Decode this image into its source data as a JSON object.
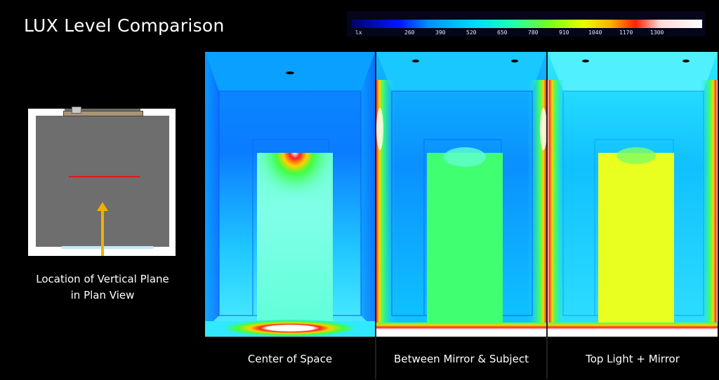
{
  "title": "LUX Level Comparison",
  "legend": {
    "unit": "lx",
    "ticks": [
      "260",
      "390",
      "520",
      "650",
      "780",
      "910",
      "1040",
      "1170",
      "1300"
    ]
  },
  "plan": {
    "caption_line1": "Location of Vertical Plane",
    "caption_line2": "in Plan View"
  },
  "panels": [
    {
      "label": "Center of Space"
    },
    {
      "label": "Between Mirror & Subject"
    },
    {
      "label": "Top Light + Mirror"
    }
  ],
  "colors": {
    "background": "#000000",
    "plan_line": "#e01818",
    "arrow": "#f1b000"
  }
}
